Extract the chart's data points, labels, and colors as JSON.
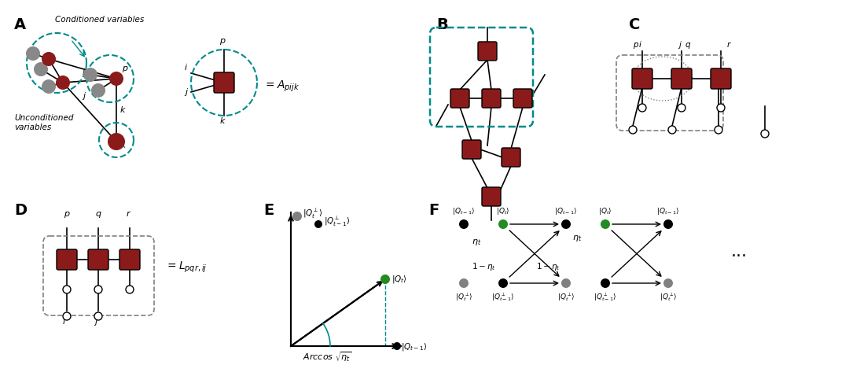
{
  "bg_color": "#ffffff",
  "dark_red": "#8B1A1A",
  "gray_node": "#888888",
  "teal": "#008B8B",
  "green_dot": "#228B22",
  "label_A": "A",
  "label_B": "B",
  "label_C": "C",
  "label_D": "D",
  "label_E": "E",
  "label_F": "F"
}
